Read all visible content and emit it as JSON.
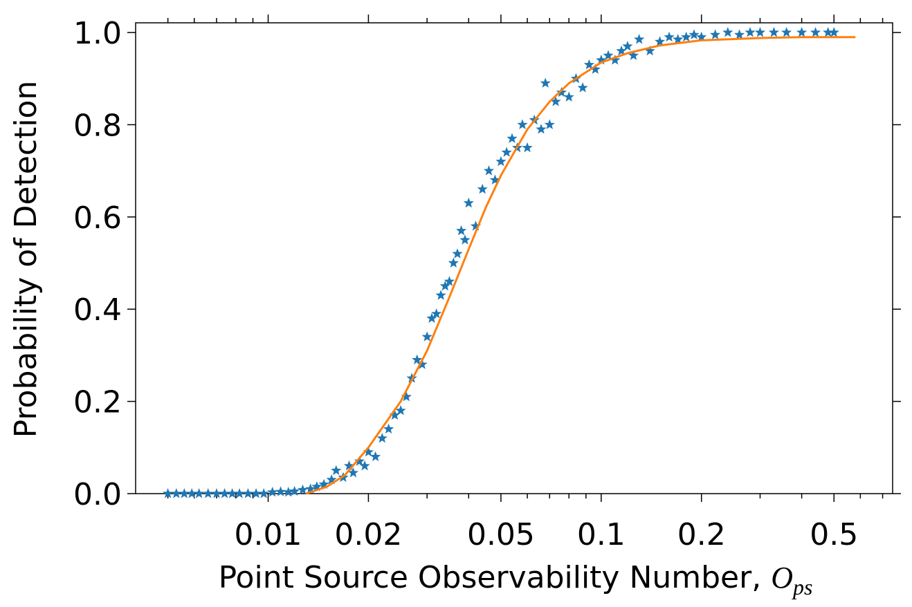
{
  "chart_data": {
    "type": "scatter",
    "xlabel": "Point Source Observability Number,",
    "xlabel_symbol": "O",
    "xlabel_subscript": "ps",
    "ylabel": "Probability of Detection",
    "xscale": "log",
    "xlim": [
      0.004,
      0.75
    ],
    "ylim": [
      0,
      1.021
    ],
    "xticks": [
      0.01,
      0.02,
      0.05,
      0.1,
      0.2,
      0.5
    ],
    "xticks_minor": [
      0.005,
      0.006,
      0.007,
      0.008,
      0.009,
      0.03,
      0.04,
      0.06,
      0.07,
      0.08,
      0.09,
      0.3,
      0.4,
      0.6,
      0.7
    ],
    "yticks": [
      {
        "value": 0,
        "label": "0.0"
      },
      0.2,
      0.4,
      0.6,
      0.8,
      {
        "value": 1,
        "label": "1.0"
      }
    ],
    "series": [
      {
        "type": "scatter",
        "color": "#1f77b4",
        "x": [
          0.005,
          0.0053,
          0.0056,
          0.0059,
          0.0062,
          0.0066,
          0.007,
          0.0074,
          0.0078,
          0.0082,
          0.0087,
          0.0092,
          0.0097,
          0.0103,
          0.0109,
          0.0115,
          0.012,
          0.0127,
          0.0134,
          0.014,
          0.0147,
          0.0155,
          0.016,
          0.0168,
          0.0175,
          0.018,
          0.0188,
          0.0195,
          0.02,
          0.021,
          0.022,
          0.023,
          0.024,
          0.025,
          0.026,
          0.027,
          0.028,
          0.029,
          0.03,
          0.031,
          0.032,
          0.033,
          0.034,
          0.035,
          0.036,
          0.037,
          0.038,
          0.039,
          0.04,
          0.042,
          0.044,
          0.046,
          0.048,
          0.05,
          0.052,
          0.054,
          0.056,
          0.058,
          0.06,
          0.063,
          0.066,
          0.068,
          0.07,
          0.073,
          0.076,
          0.08,
          0.084,
          0.088,
          0.092,
          0.096,
          0.1,
          0.105,
          0.11,
          0.115,
          0.12,
          0.125,
          0.13,
          0.14,
          0.15,
          0.16,
          0.17,
          0.18,
          0.19,
          0.2,
          0.22,
          0.24,
          0.26,
          0.28,
          0.3,
          0.33,
          0.36,
          0.4,
          0.44,
          0.48,
          0.5
        ],
        "values": [
          0,
          0,
          0,
          0,
          0,
          0,
          0,
          0,
          0,
          0,
          0,
          0,
          0,
          0.003,
          0.004,
          0.003,
          0.005,
          0.008,
          0.01,
          0.015,
          0.02,
          0.03,
          0.05,
          0.035,
          0.06,
          0.045,
          0.07,
          0.06,
          0.09,
          0.08,
          0.12,
          0.14,
          0.17,
          0.18,
          0.21,
          0.25,
          0.29,
          0.28,
          0.34,
          0.38,
          0.39,
          0.43,
          0.45,
          0.46,
          0.5,
          0.52,
          0.57,
          0.55,
          0.63,
          0.58,
          0.66,
          0.7,
          0.68,
          0.72,
          0.74,
          0.77,
          0.75,
          0.8,
          0.75,
          0.81,
          0.79,
          0.89,
          0.8,
          0.85,
          0.87,
          0.86,
          0.9,
          0.88,
          0.93,
          0.92,
          0.94,
          0.95,
          0.94,
          0.96,
          0.97,
          0.95,
          0.985,
          0.96,
          0.98,
          0.99,
          0.985,
          0.99,
          0.995,
          0.99,
          0.995,
          1.0,
          0.995,
          1.0,
          1.0,
          1.0,
          1.0,
          1.0,
          1.0,
          1.0,
          1.0
        ]
      },
      {
        "type": "line",
        "color": "#ff7f0e",
        "x": [
          0.013,
          0.015,
          0.017,
          0.02,
          0.025,
          0.03,
          0.035,
          0.04,
          0.045,
          0.05,
          0.06,
          0.07,
          0.08,
          0.1,
          0.12,
          0.15,
          0.2,
          0.3,
          0.4,
          0.58
        ],
        "values": [
          0,
          0.015,
          0.04,
          0.1,
          0.2,
          0.31,
          0.426,
          0.53,
          0.62,
          0.69,
          0.79,
          0.85,
          0.89,
          0.935,
          0.955,
          0.972,
          0.983,
          0.988,
          0.99,
          0.99
        ]
      }
    ]
  }
}
